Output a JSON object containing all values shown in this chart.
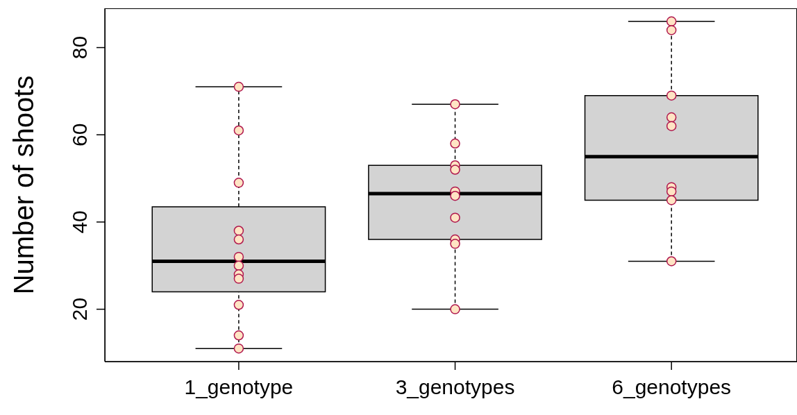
{
  "chart_data": {
    "type": "box",
    "ylabel": "Number of shoots",
    "categories": [
      "1_genotype",
      "3_genotypes",
      "6_genotypes"
    ],
    "ylim": [
      8,
      89
    ],
    "yticks": [
      20,
      40,
      60,
      80
    ],
    "color": "#d3d3d3",
    "boxes": [
      {
        "low": 11,
        "q1": 24,
        "median": 31,
        "q3": 43.5,
        "high": 71
      },
      {
        "low": 20,
        "q1": 36,
        "median": 46.5,
        "q3": 53,
        "high": 67
      },
      {
        "low": 31,
        "q1": 45,
        "median": 55,
        "q3": 69,
        "high": 86
      }
    ],
    "series": [
      {
        "type": "scatter",
        "color": "#ffe4c4",
        "x": [
          "1_genotype",
          "1_genotype",
          "1_genotype",
          "1_genotype",
          "1_genotype",
          "1_genotype",
          "1_genotype",
          "1_genotype",
          "1_genotype",
          "1_genotype",
          "1_genotype",
          "1_genotype",
          "3_genotypes",
          "3_genotypes",
          "3_genotypes",
          "3_genotypes",
          "3_genotypes",
          "3_genotypes",
          "3_genotypes",
          "3_genotypes",
          "3_genotypes",
          "3_genotypes",
          "6_genotypes",
          "6_genotypes",
          "6_genotypes",
          "6_genotypes",
          "6_genotypes",
          "6_genotypes",
          "6_genotypes",
          "6_genotypes",
          "6_genotypes"
        ],
        "values": [
          71,
          61,
          49,
          38,
          36,
          32,
          30,
          28,
          27,
          21,
          14,
          11,
          67,
          58,
          53,
          52,
          47,
          46,
          41,
          36,
          35,
          20,
          86,
          84,
          69,
          64,
          62,
          48,
          47,
          45,
          31
        ]
      }
    ],
    "grid": false,
    "legend": false
  }
}
